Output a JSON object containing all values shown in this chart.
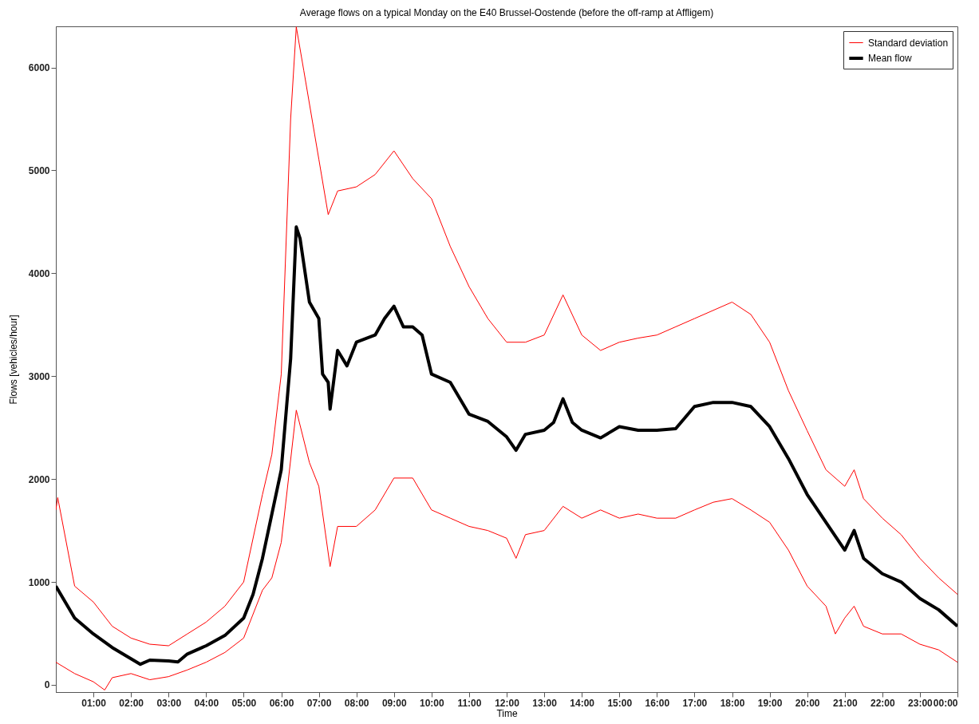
{
  "chart_data": {
    "type": "line",
    "title": "Average flows on a typical Monday on the E40 Brussel-Oostende (before the off-ramp at Affligem)",
    "xlabel": "Time",
    "ylabel": "Flows [vehicles/hour]",
    "xlim": [
      0,
      24
    ],
    "ylim": [
      -70,
      6400
    ],
    "xticks": [
      {
        "value": 1,
        "label": "01:00"
      },
      {
        "value": 2,
        "label": "02:00"
      },
      {
        "value": 3,
        "label": "03:00"
      },
      {
        "value": 4,
        "label": "04:00"
      },
      {
        "value": 5,
        "label": "05:00"
      },
      {
        "value": 6,
        "label": "06:00"
      },
      {
        "value": 7,
        "label": "07:00"
      },
      {
        "value": 8,
        "label": "08:00"
      },
      {
        "value": 9,
        "label": "09:00"
      },
      {
        "value": 10,
        "label": "10:00"
      },
      {
        "value": 11,
        "label": "11:00"
      },
      {
        "value": 12,
        "label": "12:00"
      },
      {
        "value": 13,
        "label": "13:00"
      },
      {
        "value": 14,
        "label": "14:00"
      },
      {
        "value": 15,
        "label": "15:00"
      },
      {
        "value": 16,
        "label": "16:00"
      },
      {
        "value": 17,
        "label": "17:00"
      },
      {
        "value": 18,
        "label": "18:00"
      },
      {
        "value": 19,
        "label": "19:00"
      },
      {
        "value": 20,
        "label": "20:00"
      },
      {
        "value": 21,
        "label": "21:00"
      },
      {
        "value": 22,
        "label": "22:00"
      },
      {
        "value": 23,
        "label": "23:00"
      },
      {
        "value": 24,
        "label": "00:00"
      }
    ],
    "yticks": [
      0,
      1000,
      2000,
      3000,
      4000,
      5000,
      6000
    ],
    "grid": false,
    "legend": "top right",
    "marker": "none",
    "line_style": "solid",
    "series": [
      {
        "name": "Standard deviation",
        "color": "#ff0000",
        "x": [
          0,
          0.05,
          0.5,
          1,
          1.5,
          2,
          2.5,
          3,
          3.5,
          4,
          4.5,
          5,
          5.5,
          5.75,
          6,
          6.25,
          6.4,
          6.6,
          7,
          7.25,
          7.5,
          8,
          8.5,
          9,
          9.5,
          10,
          10.5,
          11,
          11.5,
          12,
          12.5,
          13,
          13.5,
          14,
          14.5,
          15,
          15.5,
          16,
          16.5,
          17,
          17.5,
          18,
          18.5,
          19,
          19.5,
          20,
          20.5,
          21,
          21.25,
          21.5,
          22,
          22.5,
          23,
          23.5,
          24
        ],
        "values": [
          1700,
          1820,
          960,
          805,
          570,
          455,
          395,
          380,
          495,
          610,
          765,
          1000,
          1850,
          2240,
          3020,
          5500,
          6395,
          5970,
          5110,
          4570,
          4800,
          4840,
          4960,
          5190,
          4920,
          4725,
          4260,
          3870,
          3560,
          3330,
          3330,
          3400,
          3790,
          3400,
          3250,
          3330,
          3370,
          3400,
          3480,
          3560,
          3640,
          3720,
          3600,
          3330,
          2860,
          2470,
          2090,
          1930,
          2090,
          1810,
          1620,
          1460,
          1230,
          1040,
          880
        ]
      },
      {
        "color": "#ff0000",
        "x": [
          0,
          0.5,
          1,
          1.3,
          1.5,
          2,
          2.5,
          3,
          3.5,
          4,
          4.5,
          5,
          5.5,
          5.75,
          6,
          6.4,
          6.75,
          7,
          7.3,
          7.5,
          8,
          8.5,
          9,
          9.5,
          10,
          10.5,
          11,
          11.5,
          12,
          12.25,
          12.5,
          13,
          13.5,
          14,
          14.5,
          15,
          15.5,
          16,
          16.5,
          17,
          17.5,
          18,
          18.5,
          19,
          19.5,
          20,
          20.5,
          20.75,
          21,
          21.25,
          21.5,
          22,
          22.5,
          23,
          23.5,
          24
        ],
        "values": [
          220,
          110,
          30,
          -50,
          70,
          110,
          50,
          80,
          145,
          220,
          315,
          455,
          920,
          1040,
          1385,
          2670,
          2160,
          1930,
          1150,
          1540,
          1540,
          1700,
          2010,
          2010,
          1700,
          1620,
          1540,
          1500,
          1425,
          1230,
          1460,
          1500,
          1735,
          1620,
          1700,
          1620,
          1660,
          1620,
          1620,
          1700,
          1775,
          1810,
          1700,
          1580,
          1310,
          960,
          765,
          495,
          650,
          765,
          570,
          495,
          495,
          395,
          340,
          220
        ]
      },
      {
        "name": "Mean flow",
        "color": "#000000",
        "x": [
          0,
          0.5,
          1,
          1.5,
          2,
          2.25,
          2.5,
          3,
          3.25,
          3.5,
          4,
          4.5,
          5,
          5.25,
          5.5,
          5.75,
          6,
          6.25,
          6.4,
          6.5,
          6.75,
          7,
          7.1,
          7.25,
          7.3,
          7.5,
          7.75,
          8,
          8.5,
          8.75,
          9,
          9.25,
          9.5,
          9.75,
          10,
          10.5,
          11,
          11.5,
          12,
          12.25,
          12.5,
          13,
          13.25,
          13.5,
          13.75,
          14,
          14.5,
          15,
          15.5,
          16,
          16.5,
          17,
          17.5,
          18,
          18.5,
          19,
          19.5,
          20,
          20.5,
          21,
          21.25,
          21.5,
          22,
          22.5,
          23,
          23.5,
          24
        ],
        "values": [
          960,
          650,
          495,
          363,
          254,
          200,
          240,
          232,
          223,
          300,
          380,
          480,
          650,
          880,
          1230,
          1660,
          2090,
          3170,
          4450,
          4340,
          3720,
          3560,
          3020,
          2940,
          2680,
          3250,
          3100,
          3330,
          3400,
          3560,
          3680,
          3480,
          3480,
          3400,
          3020,
          2940,
          2630,
          2560,
          2410,
          2280,
          2435,
          2475,
          2550,
          2780,
          2550,
          2475,
          2400,
          2510,
          2475,
          2475,
          2490,
          2705,
          2745,
          2745,
          2705,
          2510,
          2200,
          1850,
          1580,
          1310,
          1500,
          1230,
          1080,
          1000,
          840,
          730,
          570
        ]
      }
    ]
  }
}
